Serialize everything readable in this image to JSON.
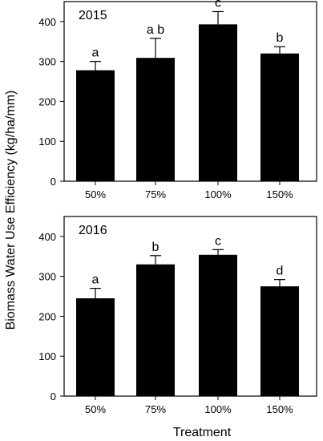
{
  "figure": {
    "ylabel": "Biomass Water Use Efficiency (kg/ha/mm)",
    "xlabel": "Treatment"
  },
  "chart_data": [
    {
      "type": "bar",
      "title": "2015",
      "categories": [
        "50%",
        "75%",
        "100%",
        "150%"
      ],
      "values": [
        278,
        309,
        393,
        320
      ],
      "errors": [
        22,
        49,
        32,
        17
      ],
      "letters": [
        "a",
        "a b",
        "c",
        "b"
      ],
      "ylim": [
        0,
        450
      ],
      "yticks": [
        0,
        100,
        200,
        300,
        400
      ],
      "bar_color": "#000000"
    },
    {
      "type": "bar",
      "title": "2016",
      "categories": [
        "50%",
        "75%",
        "100%",
        "150%"
      ],
      "values": [
        245,
        330,
        354,
        275
      ],
      "errors": [
        25,
        22,
        13,
        17
      ],
      "letters": [
        "a",
        "b",
        "c",
        "d"
      ],
      "ylim": [
        0,
        450
      ],
      "yticks": [
        0,
        100,
        200,
        300,
        400
      ],
      "bar_color": "#000000"
    }
  ]
}
